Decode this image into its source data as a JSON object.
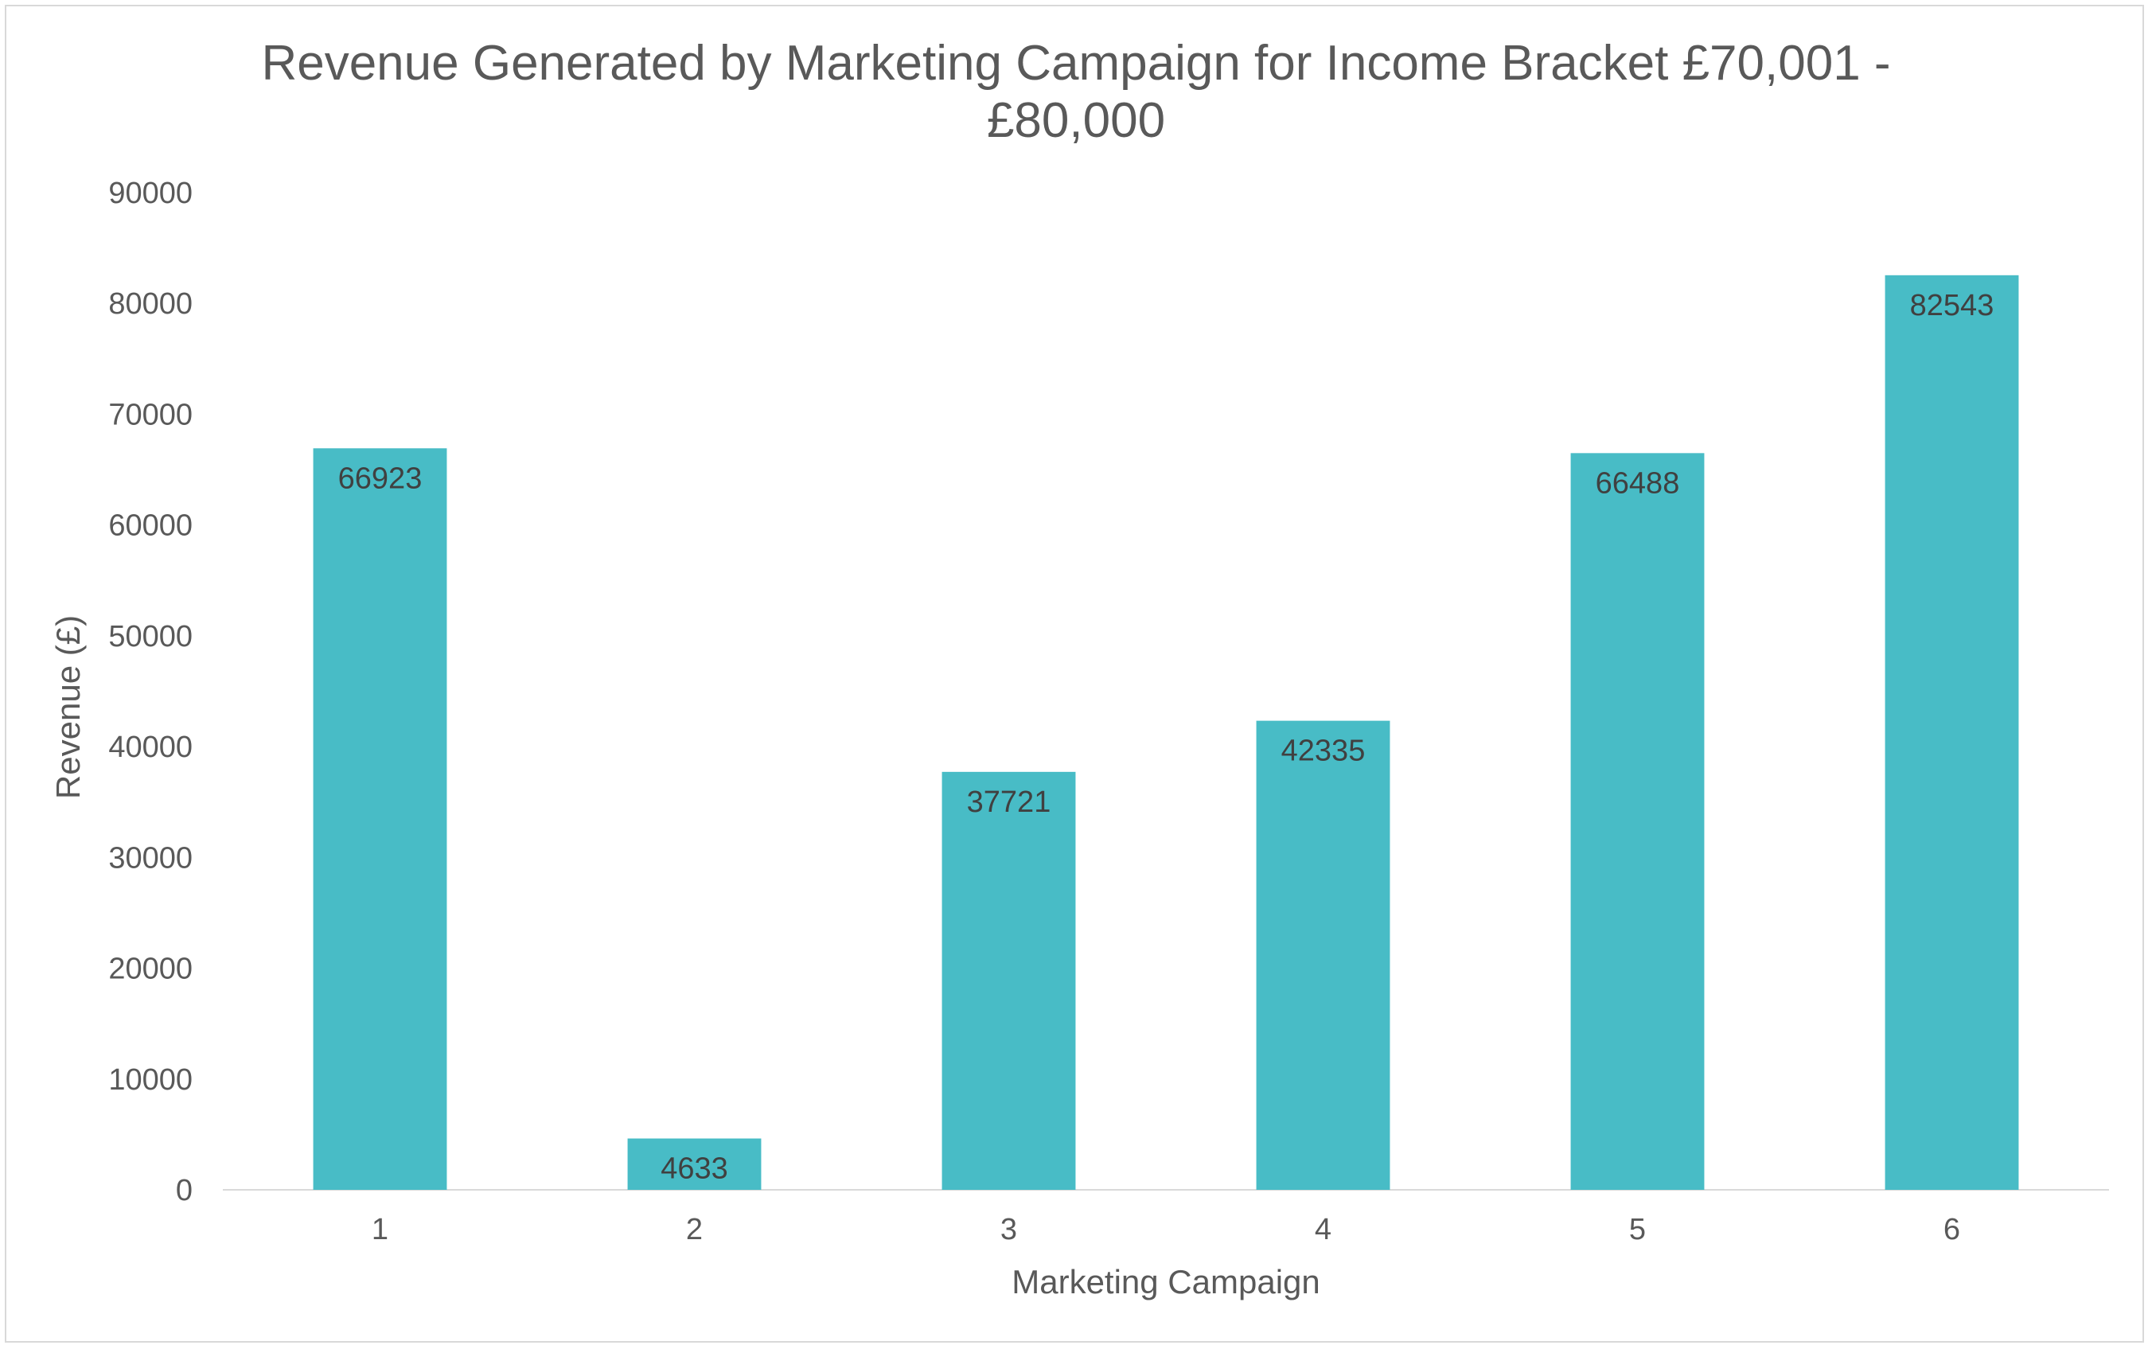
{
  "chart_data": {
    "type": "bar",
    "title_lines": [
      "Revenue Generated by Marketing Campaign for Income Bracket £70,001 -",
      "£80,000"
    ],
    "xlabel": "Marketing Campaign",
    "ylabel": "Revenue (£)",
    "categories": [
      "1",
      "2",
      "3",
      "4",
      "5",
      "6"
    ],
    "values": [
      66923,
      4633,
      37721,
      42335,
      66488,
      82543
    ],
    "data_labels": [
      "66923",
      "4633",
      "37721",
      "42335",
      "66488",
      "82543"
    ],
    "ylim": [
      0,
      90000
    ],
    "yticks": [
      "0",
      "10000",
      "20000",
      "30000",
      "40000",
      "50000",
      "60000",
      "70000",
      "80000",
      "90000"
    ],
    "bar_color": "#48BCC6",
    "grid": false,
    "legend": "none"
  }
}
